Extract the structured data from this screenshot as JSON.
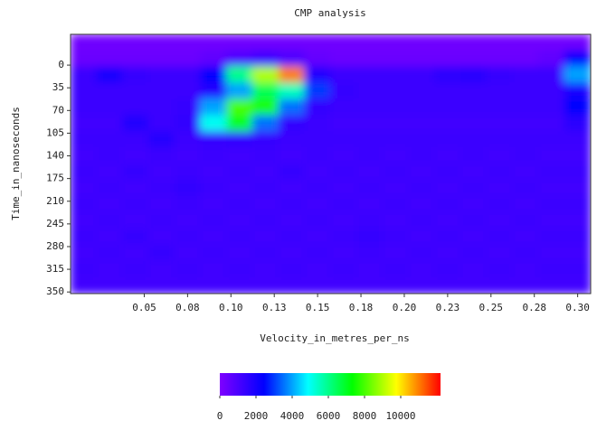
{
  "chart_data": {
    "type": "heatmap",
    "title": "CMP analysis",
    "x_label": "Velocity_in_metres_per_ns",
    "y_label": "Time_in_nanoseconds",
    "x": [
      0.015,
      0.03,
      0.045,
      0.06,
      0.075,
      0.09,
      0.105,
      0.12,
      0.135,
      0.15,
      0.165,
      0.18,
      0.195,
      0.21,
      0.225,
      0.24,
      0.255,
      0.27,
      0.285,
      0.3
    ],
    "y": [
      -35,
      -10,
      15,
      40,
      65,
      90,
      115,
      140,
      165,
      190,
      215,
      240,
      265,
      290,
      315,
      340
    ],
    "z": [
      [
        300,
        300,
        300,
        300,
        300,
        300,
        300,
        300,
        300,
        300,
        300,
        300,
        300,
        300,
        300,
        300,
        300,
        300,
        300,
        300
      ],
      [
        400,
        400,
        400,
        400,
        400,
        600,
        900,
        1200,
        900,
        500,
        400,
        400,
        400,
        400,
        400,
        400,
        400,
        400,
        600,
        2500
      ],
      [
        1300,
        2000,
        1400,
        1300,
        1300,
        2500,
        6000,
        9000,
        11000,
        1800,
        1300,
        1300,
        1300,
        1300,
        1600,
        1700,
        1400,
        1300,
        1300,
        4000
      ],
      [
        1300,
        1300,
        1300,
        1300,
        1300,
        1800,
        4000,
        6500,
        5500,
        3000,
        1400,
        1300,
        1300,
        1300,
        1300,
        1300,
        1300,
        1300,
        1300,
        2000
      ],
      [
        1300,
        1300,
        1300,
        1300,
        1400,
        4000,
        8000,
        7500,
        3500,
        1500,
        1300,
        1300,
        1300,
        1300,
        1300,
        1300,
        1300,
        1300,
        1300,
        2500
      ],
      [
        1200,
        1200,
        1800,
        1300,
        1500,
        5000,
        7000,
        3500,
        1500,
        1300,
        1200,
        1200,
        1200,
        1200,
        1200,
        1200,
        1200,
        1200,
        1200,
        1600
      ],
      [
        1300,
        1300,
        1300,
        1700,
        1300,
        1400,
        1500,
        1400,
        1300,
        1300,
        1300,
        1300,
        1300,
        1300,
        1300,
        1300,
        1300,
        1300,
        1300,
        1300
      ],
      [
        1200,
        1300,
        1200,
        1300,
        1200,
        1300,
        1200,
        1300,
        1200,
        1300,
        1200,
        1300,
        1200,
        1300,
        1200,
        1300,
        1200,
        1300,
        1200,
        1200
      ],
      [
        1300,
        1200,
        1400,
        1200,
        1300,
        1200,
        1300,
        1200,
        1400,
        1200,
        1300,
        1200,
        1300,
        1200,
        1300,
        1200,
        1300,
        1200,
        1300,
        1300
      ],
      [
        1200,
        1300,
        1200,
        1300,
        1500,
        1300,
        1200,
        1300,
        1200,
        1300,
        1200,
        1300,
        1200,
        1300,
        1200,
        1300,
        1200,
        1300,
        1200,
        1200
      ],
      [
        1300,
        1200,
        1300,
        1200,
        1300,
        1200,
        1300,
        1200,
        1300,
        1200,
        1300,
        1200,
        1300,
        1200,
        1300,
        1200,
        1300,
        1200,
        1300,
        1300
      ],
      [
        1200,
        1300,
        1200,
        1300,
        1200,
        1300,
        1200,
        1300,
        1200,
        1300,
        1200,
        1300,
        1200,
        1300,
        1200,
        1300,
        1200,
        1300,
        1200,
        1200
      ],
      [
        1300,
        1200,
        1400,
        1200,
        1300,
        1200,
        1300,
        1200,
        1300,
        1200,
        1300,
        1400,
        1300,
        1200,
        1300,
        1200,
        1300,
        1200,
        1300,
        1300
      ],
      [
        1200,
        1300,
        1200,
        1400,
        1200,
        1300,
        1200,
        1300,
        1200,
        1300,
        1200,
        1300,
        1200,
        1300,
        1200,
        1300,
        1200,
        1300,
        1200,
        1200
      ],
      [
        1300,
        1200,
        1300,
        1200,
        1300,
        1200,
        1300,
        1200,
        1300,
        1200,
        1300,
        1200,
        1300,
        1200,
        1300,
        1200,
        1300,
        1200,
        1300,
        1300
      ],
      [
        1200,
        1200,
        1200,
        1200,
        1200,
        1200,
        1200,
        1200,
        1200,
        1200,
        1200,
        1200,
        1200,
        1200,
        1200,
        1200,
        1200,
        1200,
        1200,
        1200
      ]
    ],
    "xlim": [
      0.0075,
      0.3075
    ],
    "xticks": [
      0.05,
      {
        "value": 0.075,
        "label": "0.08"
      },
      {
        "value": 0.1,
        "label": "0.10"
      },
      {
        "value": 0.125,
        "label": "0.13"
      },
      {
        "value": 0.15,
        "label": "0.15"
      },
      {
        "value": 0.175,
        "label": "0.18"
      },
      {
        "value": 0.2,
        "label": "0.20"
      },
      {
        "value": 0.225,
        "label": "0.23"
      },
      {
        "value": 0.25,
        "label": "0.25"
      },
      {
        "value": 0.275,
        "label": "0.28"
      },
      {
        "value": 0.3,
        "label": "0.30"
      }
    ],
    "ylim": [
      352.5,
      -47.5
    ],
    "yticks": [
      0,
      35,
      70,
      105,
      140,
      175,
      210,
      245,
      280,
      315,
      350
    ],
    "clim": [
      0,
      12200
    ],
    "cticks": [
      0,
      2000,
      4000,
      6000,
      8000,
      10000
    ],
    "colormap": [
      "#7f00ff",
      "#0000ff",
      "#00ffff",
      "#00ff00",
      "#ffff00",
      "#ff0000"
    ]
  }
}
